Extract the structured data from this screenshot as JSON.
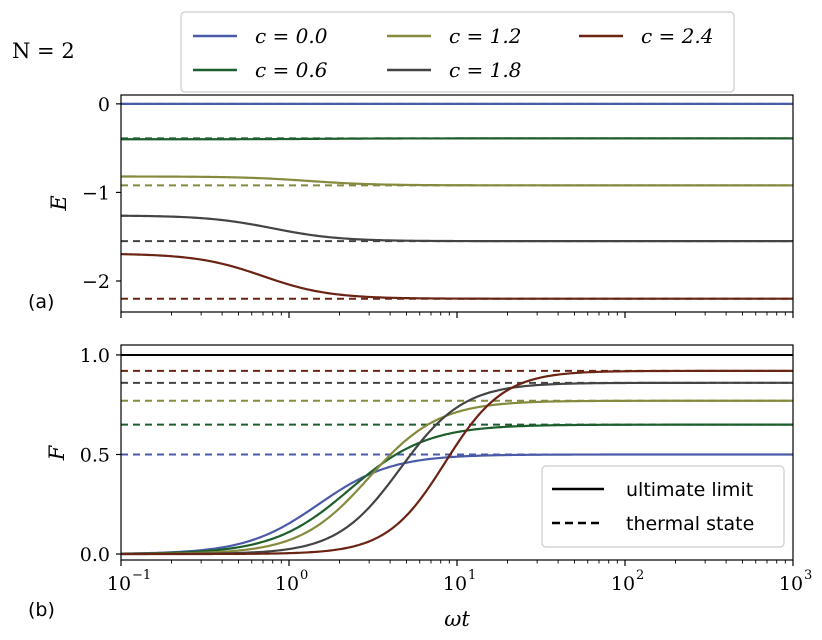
{
  "figure_label": "N = 2",
  "chart_data": [
    {
      "type": "line",
      "panel_tag": "(a)",
      "ylabel": "E",
      "xscale": "log",
      "xlim": [
        0.1,
        1000
      ],
      "ylim": [
        -2.35,
        0.1
      ],
      "yticks": [
        0,
        -1,
        -2
      ],
      "ytick_labels": [
        "0",
        "−1",
        "−2"
      ],
      "xticks": [
        0.1,
        1,
        10,
        100,
        1000
      ],
      "xtick_labels": [
        "",
        "",
        "",
        "",
        ""
      ],
      "series": [
        {
          "name": "c = 0.0",
          "color": "#4a5aa8",
          "style": "solid",
          "start": 0.0,
          "end": 0.0,
          "midpoint": 1.5
        },
        {
          "name": "c = 0.0 thermal",
          "color": "#4a5aa8",
          "style": "dashed",
          "value": 0.0
        },
        {
          "name": "c = 0.6",
          "color": "#1c5e2c",
          "style": "solid",
          "start": -0.4,
          "end": -0.39,
          "midpoint": 1.5
        },
        {
          "name": "c = 0.6 thermal",
          "color": "#1c5e2c",
          "style": "dashed",
          "value": -0.39
        },
        {
          "name": "c = 1.2",
          "color": "#858a3e",
          "style": "solid",
          "start": -0.82,
          "end": -0.92,
          "midpoint": 1.3
        },
        {
          "name": "c = 1.2 thermal",
          "color": "#858a3e",
          "style": "dashed",
          "value": -0.92
        },
        {
          "name": "c = 1.8",
          "color": "#444444",
          "style": "solid",
          "start": -1.26,
          "end": -1.55,
          "midpoint": 0.8
        },
        {
          "name": "c = 1.8 thermal",
          "color": "#444444",
          "style": "dashed",
          "value": -1.55
        },
        {
          "name": "c = 2.4",
          "color": "#6b2414",
          "style": "solid",
          "start": -1.69,
          "end": -2.2,
          "midpoint": 0.7
        },
        {
          "name": "c = 2.4 thermal",
          "color": "#6b2414",
          "style": "dashed",
          "value": -2.2
        }
      ]
    },
    {
      "type": "line",
      "panel_tag": "(b)",
      "ylabel": "F",
      "xlabel": "ωt",
      "xscale": "log",
      "xlim": [
        0.1,
        1000
      ],
      "ylim": [
        -0.03,
        1.05
      ],
      "yticks": [
        0.0,
        0.5,
        1.0
      ],
      "ytick_labels": [
        "0.0",
        "0.5",
        "1.0"
      ],
      "xticks": [
        0.1,
        1,
        10,
        100,
        1000
      ],
      "xtick_labels": [
        "10",
        "10",
        "10",
        "10",
        "10"
      ],
      "xtick_exponents": [
        "−1",
        "0",
        "1",
        "2",
        "3"
      ],
      "series": [
        {
          "name": "ultimate limit",
          "color": "#000000",
          "style": "solid",
          "value": 1.0
        },
        {
          "name": "c = 2.4 thermal",
          "color": "#6b2414",
          "style": "dashed",
          "value": 0.92
        },
        {
          "name": "c = 1.8 thermal",
          "color": "#444444",
          "style": "dashed",
          "value": 0.86
        },
        {
          "name": "c = 1.2 thermal",
          "color": "#858a3e",
          "style": "dashed",
          "value": 0.77
        },
        {
          "name": "c = 0.6 thermal",
          "color": "#1c5e2c",
          "style": "dashed",
          "value": 0.65
        },
        {
          "name": "c = 0.0 thermal",
          "color": "#4a5aa8",
          "style": "dashed",
          "value": 0.5
        },
        {
          "name": "c = 0.0",
          "color": "#4a5aa8",
          "style": "solid",
          "end": 0.5,
          "midpoint": 1.5,
          "steepness": 2.0
        },
        {
          "name": "c = 0.6",
          "color": "#1c5e2c",
          "style": "solid",
          "end": 0.65,
          "midpoint": 2.3,
          "steepness": 1.9
        },
        {
          "name": "c = 1.2",
          "color": "#858a3e",
          "style": "solid",
          "end": 0.77,
          "midpoint": 3.0,
          "steepness": 2.1
        },
        {
          "name": "c = 1.8",
          "color": "#444444",
          "style": "solid",
          "end": 0.86,
          "midpoint": 4.6,
          "steepness": 2.3
        },
        {
          "name": "c = 2.4",
          "color": "#6b2414",
          "style": "solid",
          "end": 0.92,
          "midpoint": 8.5,
          "steepness": 2.5
        }
      ]
    }
  ],
  "legend_top": {
    "placement": "top-center",
    "entries": [
      {
        "label": "c = 0.0",
        "color": "#4a5aa8"
      },
      {
        "label": "c = 0.6",
        "color": "#1c5e2c"
      },
      {
        "label": "c = 1.2",
        "color": "#858a3e"
      },
      {
        "label": "c = 1.8",
        "color": "#444444"
      },
      {
        "label": "c = 2.4",
        "color": "#6b2414"
      }
    ]
  },
  "legend_bottom": {
    "placement": "lower-right",
    "entries": [
      {
        "label": "ultimate limit",
        "color": "#000000",
        "style": "solid"
      },
      {
        "label": "thermal state",
        "color": "#000000",
        "style": "dashed"
      }
    ]
  }
}
